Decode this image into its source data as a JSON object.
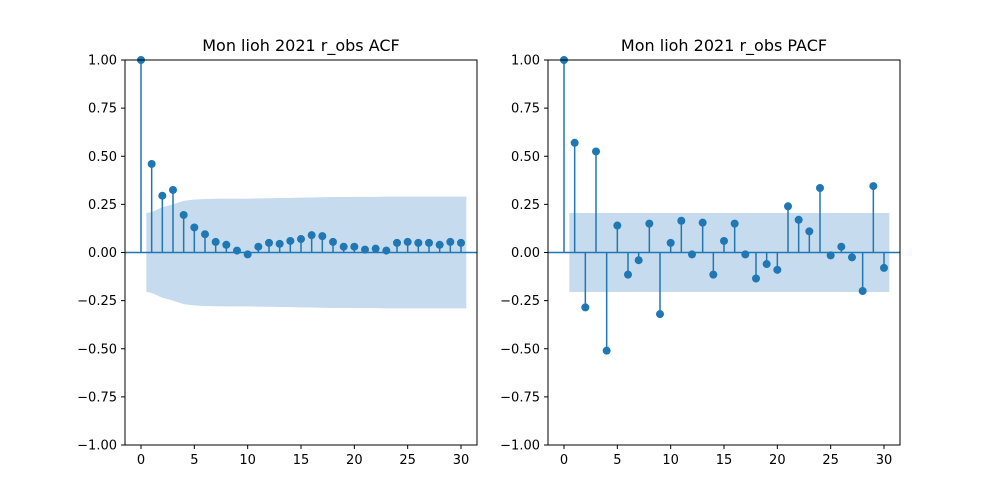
{
  "colors": {
    "stem": "#1f77b4",
    "band": "#c6dbed",
    "axes": "#000000"
  },
  "chart_data": [
    {
      "type": "stem",
      "title": "Mon lioh 2021 r_obs ACF",
      "xlim": [
        -1.5,
        31.5
      ],
      "ylim": [
        -1.0,
        1.0
      ],
      "xticks": [
        0,
        5,
        10,
        15,
        20,
        25,
        30
      ],
      "yticks": [
        -1.0,
        -0.75,
        -0.5,
        -0.25,
        0.0,
        0.25,
        0.5,
        0.75,
        1.0
      ],
      "xtick_labels": [
        "0",
        "5",
        "10",
        "15",
        "20",
        "25",
        "30"
      ],
      "ytick_labels": [
        "−1.00",
        "−0.75",
        "−0.50",
        "−0.25",
        "0.00",
        "0.25",
        "0.50",
        "0.75",
        "1.00"
      ],
      "lags": [
        0,
        1,
        2,
        3,
        4,
        5,
        6,
        7,
        8,
        9,
        10,
        11,
        12,
        13,
        14,
        15,
        16,
        17,
        18,
        19,
        20,
        21,
        22,
        23,
        24,
        25,
        26,
        27,
        28,
        29,
        30
      ],
      "values": [
        1.0,
        0.46,
        0.295,
        0.325,
        0.195,
        0.13,
        0.095,
        0.055,
        0.04,
        0.01,
        -0.01,
        0.03,
        0.05,
        0.045,
        0.06,
        0.07,
        0.09,
        0.085,
        0.055,
        0.03,
        0.03,
        0.015,
        0.02,
        0.01,
        0.05,
        0.055,
        0.05,
        0.05,
        0.04,
        0.055,
        0.05
      ],
      "confidence_band": {
        "lags": [
          0.5,
          1,
          2,
          3,
          4,
          5,
          6,
          7,
          8,
          9,
          10,
          11,
          12,
          13,
          14,
          15,
          16,
          17,
          18,
          19,
          20,
          21,
          22,
          23,
          24,
          25,
          26,
          27,
          28,
          29,
          30,
          30.5
        ],
        "upper": [
          0.205,
          0.21,
          0.235,
          0.25,
          0.268,
          0.275,
          0.278,
          0.279,
          0.28,
          0.28,
          0.28,
          0.281,
          0.282,
          0.283,
          0.284,
          0.285,
          0.286,
          0.287,
          0.288,
          0.288,
          0.289,
          0.289,
          0.289,
          0.29,
          0.29,
          0.29,
          0.29,
          0.29,
          0.29,
          0.29,
          0.29,
          0.29
        ]
      }
    },
    {
      "type": "stem",
      "title": "Mon lioh 2021 r_obs PACF",
      "xlim": [
        -1.5,
        31.5
      ],
      "ylim": [
        -1.0,
        1.0
      ],
      "xticks": [
        0,
        5,
        10,
        15,
        20,
        25,
        30
      ],
      "yticks": [
        -1.0,
        -0.75,
        -0.5,
        -0.25,
        0.0,
        0.25,
        0.5,
        0.75,
        1.0
      ],
      "xtick_labels": [
        "0",
        "5",
        "10",
        "15",
        "20",
        "25",
        "30"
      ],
      "ytick_labels": [
        "−1.00",
        "−0.75",
        "−0.50",
        "−0.25",
        "0.00",
        "0.25",
        "0.50",
        "0.75",
        "1.00"
      ],
      "lags": [
        0,
        1,
        2,
        3,
        4,
        5,
        6,
        7,
        8,
        9,
        10,
        11,
        12,
        13,
        14,
        15,
        16,
        17,
        18,
        19,
        20,
        21,
        22,
        23,
        24,
        25,
        26,
        27,
        28,
        29,
        30
      ],
      "values": [
        1.0,
        0.57,
        -0.285,
        0.525,
        -0.51,
        0.14,
        -0.115,
        -0.04,
        0.15,
        -0.32,
        0.05,
        0.165,
        -0.01,
        0.155,
        -0.115,
        0.06,
        0.15,
        -0.01,
        -0.135,
        -0.06,
        -0.09,
        0.24,
        0.17,
        0.11,
        0.335,
        -0.015,
        0.03,
        -0.025,
        -0.2,
        0.345,
        -0.08
      ],
      "confidence_band": {
        "lags": [
          0.5,
          30.5
        ],
        "upper": [
          0.205,
          0.205
        ]
      }
    }
  ]
}
